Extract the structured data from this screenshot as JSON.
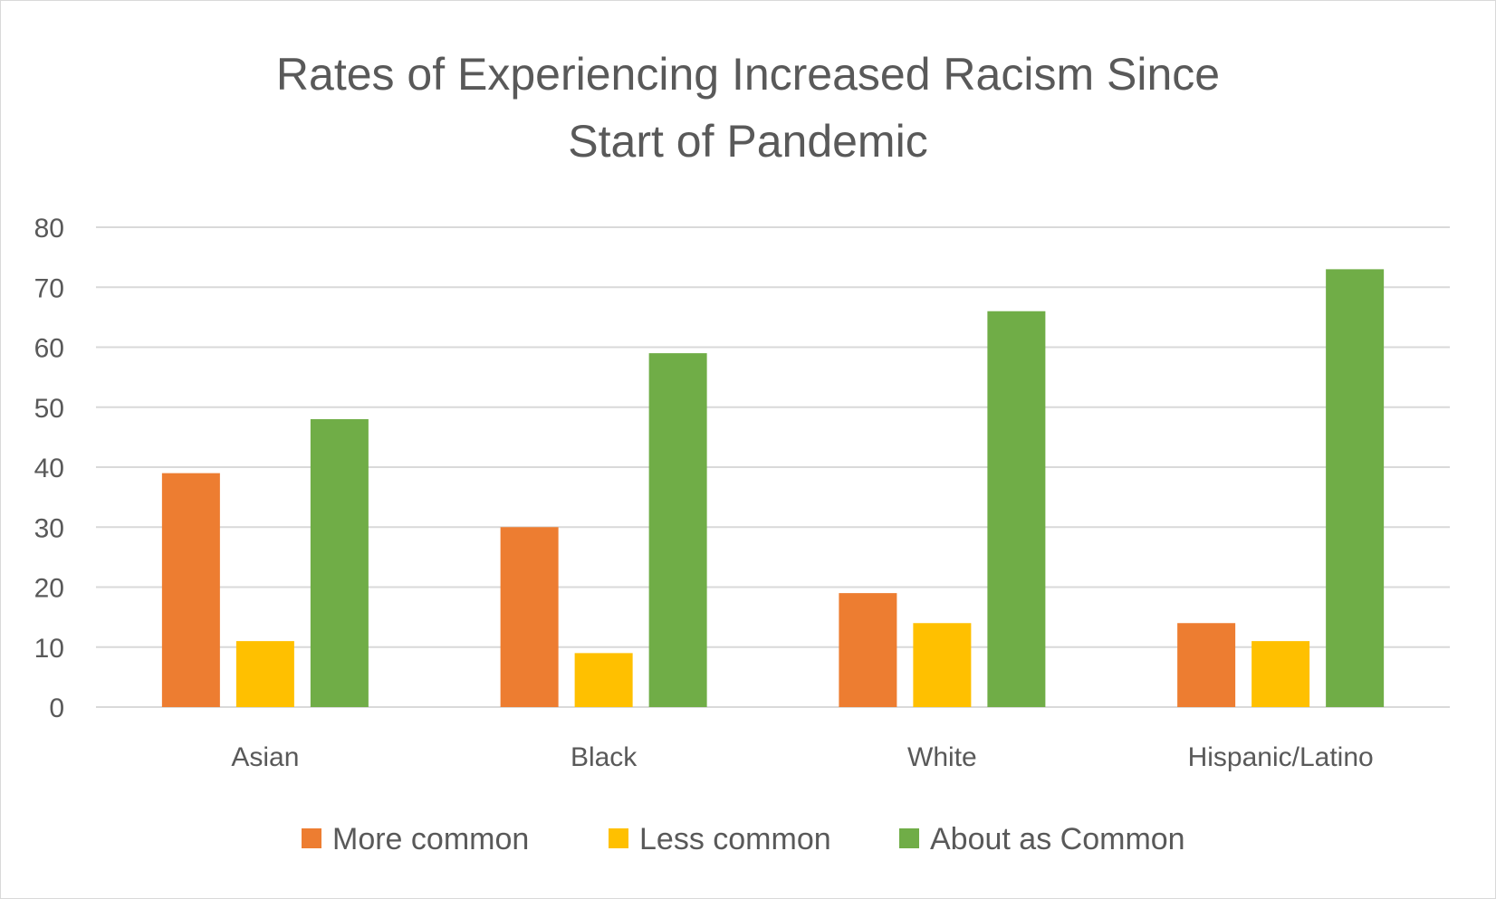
{
  "chart_data": {
    "type": "bar",
    "title_lines": [
      "Rates of Experiencing Increased Racism Since",
      "Start of Pandemic"
    ],
    "categories": [
      "Asian",
      "Black",
      "White",
      "Hispanic/Latino"
    ],
    "series": [
      {
        "name": "More common",
        "color": "#ed7d31",
        "values": [
          39,
          30,
          19,
          14
        ]
      },
      {
        "name": "Less common",
        "color": "#ffc000",
        "values": [
          11,
          9,
          14,
          11
        ]
      },
      {
        "name": "About as Common",
        "color": "#70ad47",
        "values": [
          48,
          59,
          66,
          73
        ]
      }
    ],
    "ylim": [
      0,
      80
    ],
    "yticks": [
      "0",
      "10",
      "20",
      "30",
      "40",
      "50",
      "60",
      "70",
      "80"
    ],
    "grid": true,
    "legend_position": "bottom"
  }
}
